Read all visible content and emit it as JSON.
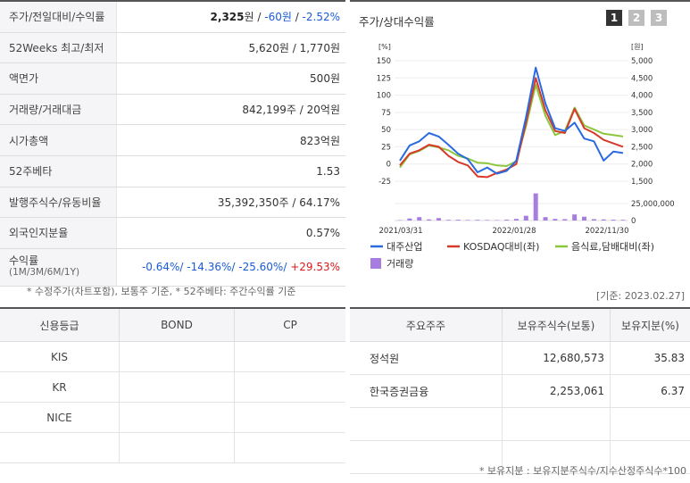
{
  "summary": {
    "rows": [
      {
        "label": "주가/전일대비/수익률"
      },
      {
        "label": "52Weeks 최고/최저",
        "value": "5,620원 / 1,770원"
      },
      {
        "label": "액면가",
        "value": "500원"
      },
      {
        "label": "거래량/거래대금",
        "value": "842,199주 / 20억원"
      },
      {
        "label": "시가총액",
        "value": "823억원"
      },
      {
        "label": "52주베타",
        "value": "1.53"
      },
      {
        "label": "발행주식수/유동비율",
        "value": "35,392,350주 / 64.17%"
      },
      {
        "label": "외국인지분율",
        "value": "0.57%"
      }
    ],
    "price": "2,325",
    "price_unit": "원",
    "change": "-60원",
    "change_pct": "-2.52%",
    "sep": " / ",
    "return_label": "수익률",
    "return_sublabel": "(1M/3M/6M/1Y)",
    "return_1m": "-0.64%/",
    "return_3m": " -14.36%/",
    "return_6m": " -25.60%/",
    "return_1y": " +29.53%",
    "note": "* 수정주가(차트포함), 보통주 기준, * 52주베타: 주간수익률 기준"
  },
  "chart_panel": {
    "title": "주가/상대수익률",
    "pages": [
      "1",
      "2",
      "3"
    ],
    "date_note": "[기준: 2023.02.27]"
  },
  "chart_data": {
    "type": "line",
    "x_labels": [
      "2021/03/31",
      "2022/01/28",
      "2022/11/30"
    ],
    "left_axis": {
      "unit": "[%]",
      "ticks": [
        150,
        125,
        100,
        75,
        50,
        25,
        0,
        -25
      ],
      "range": [
        -25,
        150
      ]
    },
    "right_axis": {
      "unit": "[원]",
      "ticks": [
        "5,000",
        "4,500",
        "4,000",
        "3,500",
        "3,000",
        "2,500",
        "2,000",
        "1,500"
      ]
    },
    "volume_axis": {
      "ticks": [
        "25,000,000",
        "0"
      ]
    },
    "series": [
      {
        "name": "대주산업",
        "color": "#2a6ae0",
        "values": [
          5,
          27,
          33,
          45,
          40,
          28,
          15,
          7,
          -12,
          -5,
          -14,
          -10,
          5,
          68,
          140,
          88,
          52,
          48,
          60,
          37,
          33,
          5,
          18,
          16
        ]
      },
      {
        "name": "KOSDAQ대비(좌)",
        "color": "#d63a2a",
        "values": [
          -2,
          15,
          20,
          28,
          25,
          12,
          3,
          -2,
          -18,
          -19,
          -13,
          -8,
          0,
          60,
          125,
          78,
          48,
          45,
          80,
          52,
          45,
          35,
          30,
          25
        ]
      },
      {
        "name": "음식료,담배대비(좌)",
        "color": "#8cc63f",
        "values": [
          -5,
          14,
          19,
          27,
          24,
          20,
          12,
          8,
          2,
          1,
          -2,
          -3,
          4,
          55,
          115,
          70,
          42,
          48,
          82,
          56,
          50,
          44,
          42,
          40
        ]
      }
    ],
    "volume": {
      "name": "거래량",
      "color": "#a77de0",
      "values": [
        0.3,
        1.5,
        2.5,
        0.8,
        1.8,
        0.5,
        0.6,
        0.4,
        0.5,
        0.4,
        0.3,
        0.6,
        1.2,
        3.5,
        20,
        2.5,
        1.2,
        1.0,
        4.5,
        2.8,
        1.0,
        0.8,
        0.6,
        0.5
      ],
      "max": 25
    }
  },
  "credit": {
    "headers": [
      "신용등급",
      "BOND",
      "CP"
    ],
    "rows": [
      [
        "KIS",
        "",
        ""
      ],
      [
        "KR",
        "",
        ""
      ],
      [
        "NICE",
        "",
        ""
      ],
      [
        "",
        "",
        ""
      ]
    ]
  },
  "holders": {
    "headers": [
      "주요주주",
      "보유주식수(보통)",
      "보유지분(%)"
    ],
    "rows": [
      [
        "정석원",
        "12,680,573",
        "35.83"
      ],
      [
        "한국증권금융",
        "2,253,061",
        "6.37"
      ],
      [
        "",
        "",
        ""
      ],
      [
        "",
        "",
        ""
      ]
    ],
    "footnote": "* 보유지분 : 보유지분주식수/지수산정주식수*100"
  }
}
